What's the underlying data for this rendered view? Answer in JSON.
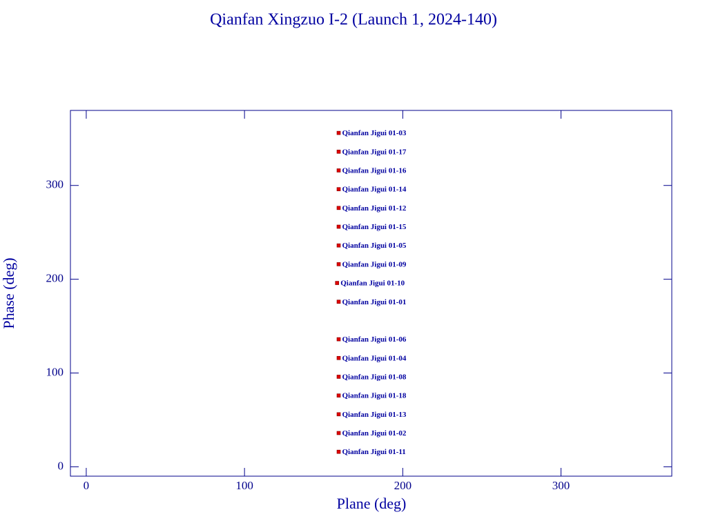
{
  "chart_data": {
    "type": "scatter",
    "title": "Qianfan Xingzuo I-2 (Launch 1, 2024-140)",
    "x_label": "Plane (deg)",
    "y_label": "Phase (deg)",
    "xlim": [
      -10,
      370
    ],
    "ylim": [
      -10,
      380
    ],
    "xticks": [
      0,
      100,
      200,
      300
    ],
    "yticks": [
      0,
      100,
      200,
      300
    ],
    "marker_color": "#e00000",
    "label_color": "#0000a0",
    "axis_color": "#00008b",
    "x": [
      159.5,
      159.5,
      159.5,
      159.5,
      159.5,
      159.5,
      159.5,
      159.5,
      158.5,
      159.5,
      159.5,
      159.5,
      159.5,
      159.5,
      159.5,
      159.5,
      159.5
    ],
    "values": [
      356,
      336,
      316,
      296,
      276,
      256,
      236,
      216,
      196,
      176,
      136,
      116,
      96,
      76,
      56,
      36,
      16
    ],
    "labels": [
      "Qianfan Jigui 01-03",
      "Qianfan Jigui 01-17",
      "Qianfan Jigui 01-16",
      "Qianfan Jigui 01-14",
      "Qianfan Jigui 01-12",
      "Qianfan Jigui 01-15",
      "Qianfan Jigui 01-05",
      "Qianfan Jigui 01-09",
      "Qianfan Jigui 01-10",
      "Qianfan Jigui 01-01",
      "Qianfan Jigui 01-06",
      "Qianfan Jigui 01-04",
      "Qianfan Jigui 01-08",
      "Qianfan Jigui 01-18",
      "Qianfan Jigui 01-13",
      "Qianfan Jigui 01-02",
      "Qianfan Jigui 01-11"
    ]
  }
}
